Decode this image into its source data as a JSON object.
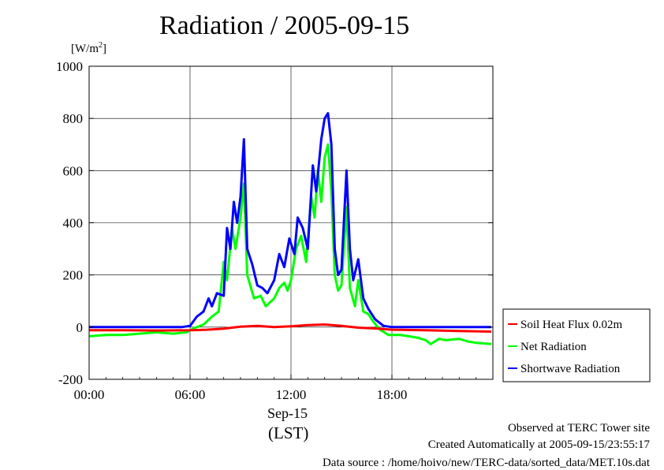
{
  "title": "Radiation / 2005-09-15",
  "ylabel_unit": "[W/m",
  "ylabel_sup": "2",
  "ylabel_close": "]",
  "date_label": "Sep-15",
  "lst_label": "(LST)",
  "footer": {
    "observed": "Observed at TERC Tower site",
    "created": "Created Automatically at 2005-09-15/23:55:17",
    "source": "Data source : /home/hoivo/new/TERC-data/sorted_data/MET.10s.dat"
  },
  "chart_data": {
    "type": "line",
    "title": "Radiation / 2005-09-15",
    "ylabel": "[W/m2]",
    "xlabel": "Sep-15 (LST)",
    "ylim": [
      -200,
      1000
    ],
    "xlim_hours": [
      0,
      24
    ],
    "x_ticks": [
      "00:00",
      "06:00",
      "12:00",
      "18:00"
    ],
    "y_ticks": [
      "-200",
      "0",
      "200",
      "400",
      "600",
      "800",
      "1000"
    ],
    "grid": true,
    "legend_position": "right",
    "series": [
      {
        "name": "Soil Heat Flux 0.02m",
        "color": "#ff0000",
        "points": [
          [
            0,
            -12
          ],
          [
            2,
            -12
          ],
          [
            4,
            -13
          ],
          [
            6,
            -12
          ],
          [
            7,
            -10
          ],
          [
            8,
            -6
          ],
          [
            9,
            2
          ],
          [
            10,
            5
          ],
          [
            11,
            0
          ],
          [
            12,
            3
          ],
          [
            13,
            8
          ],
          [
            14,
            10
          ],
          [
            15,
            5
          ],
          [
            16,
            -2
          ],
          [
            17,
            -5
          ],
          [
            18,
            -10
          ],
          [
            20,
            -12
          ],
          [
            22,
            -15
          ],
          [
            23.9,
            -17
          ]
        ]
      },
      {
        "name": "Net Radiation",
        "color": "#00ff00",
        "points": [
          [
            0,
            -35
          ],
          [
            1,
            -30
          ],
          [
            2,
            -30
          ],
          [
            3,
            -25
          ],
          [
            4,
            -20
          ],
          [
            5,
            -25
          ],
          [
            5.8,
            -20
          ],
          [
            6.2,
            -5
          ],
          [
            6.8,
            10
          ],
          [
            7.3,
            40
          ],
          [
            7.7,
            60
          ],
          [
            8,
            250
          ],
          [
            8.2,
            180
          ],
          [
            8.5,
            380
          ],
          [
            8.7,
            300
          ],
          [
            9,
            420
          ],
          [
            9.2,
            550
          ],
          [
            9.4,
            200
          ],
          [
            9.8,
            110
          ],
          [
            10.2,
            120
          ],
          [
            10.5,
            80
          ],
          [
            11,
            110
          ],
          [
            11.3,
            150
          ],
          [
            11.6,
            170
          ],
          [
            11.8,
            140
          ],
          [
            12,
            180
          ],
          [
            12.3,
            300
          ],
          [
            12.6,
            350
          ],
          [
            12.9,
            250
          ],
          [
            13.2,
            500
          ],
          [
            13.4,
            420
          ],
          [
            13.6,
            600
          ],
          [
            13.8,
            480
          ],
          [
            14,
            650
          ],
          [
            14.2,
            700
          ],
          [
            14.4,
            520
          ],
          [
            14.6,
            200
          ],
          [
            14.8,
            140
          ],
          [
            15,
            160
          ],
          [
            15.3,
            460
          ],
          [
            15.5,
            150
          ],
          [
            15.8,
            80
          ],
          [
            16,
            180
          ],
          [
            16.3,
            60
          ],
          [
            16.6,
            50
          ],
          [
            16.9,
            20
          ],
          [
            17.3,
            -10
          ],
          [
            17.8,
            -30
          ],
          [
            18.5,
            -30
          ],
          [
            19,
            -35
          ],
          [
            19.5,
            -40
          ],
          [
            20,
            -50
          ],
          [
            20.3,
            -65
          ],
          [
            20.8,
            -45
          ],
          [
            21.2,
            -50
          ],
          [
            22,
            -45
          ],
          [
            22.5,
            -55
          ],
          [
            23,
            -60
          ],
          [
            23.9,
            -65
          ]
        ]
      },
      {
        "name": "Shortwave Radiation",
        "color": "#0000ff",
        "points": [
          [
            0,
            0
          ],
          [
            2,
            0
          ],
          [
            4,
            0
          ],
          [
            5.5,
            0
          ],
          [
            6,
            5
          ],
          [
            6.4,
            40
          ],
          [
            6.8,
            60
          ],
          [
            7.1,
            110
          ],
          [
            7.3,
            80
          ],
          [
            7.6,
            130
          ],
          [
            8,
            120
          ],
          [
            8.2,
            380
          ],
          [
            8.4,
            300
          ],
          [
            8.6,
            480
          ],
          [
            8.8,
            400
          ],
          [
            9,
            500
          ],
          [
            9.2,
            720
          ],
          [
            9.4,
            300
          ],
          [
            9.7,
            240
          ],
          [
            10,
            160
          ],
          [
            10.3,
            150
          ],
          [
            10.6,
            130
          ],
          [
            11,
            180
          ],
          [
            11.3,
            280
          ],
          [
            11.6,
            230
          ],
          [
            11.9,
            340
          ],
          [
            12.2,
            280
          ],
          [
            12.4,
            420
          ],
          [
            12.7,
            380
          ],
          [
            13,
            300
          ],
          [
            13.3,
            620
          ],
          [
            13.5,
            520
          ],
          [
            13.8,
            720
          ],
          [
            14,
            800
          ],
          [
            14.2,
            820
          ],
          [
            14.4,
            700
          ],
          [
            14.6,
            300
          ],
          [
            14.8,
            200
          ],
          [
            15,
            220
          ],
          [
            15.3,
            600
          ],
          [
            15.5,
            300
          ],
          [
            15.7,
            180
          ],
          [
            16,
            260
          ],
          [
            16.3,
            110
          ],
          [
            16.6,
            70
          ],
          [
            17,
            30
          ],
          [
            17.5,
            5
          ],
          [
            18,
            0
          ],
          [
            20,
            0
          ],
          [
            22,
            0
          ],
          [
            23.9,
            0
          ]
        ]
      }
    ]
  }
}
